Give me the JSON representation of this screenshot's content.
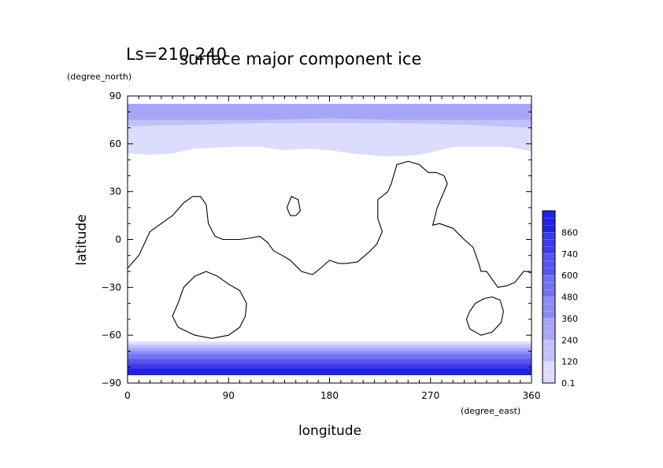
{
  "chart_data": {
    "type": "heatmap",
    "title": "surface major component ice",
    "subtitle": "Ls=210-240",
    "xlabel": "longitude",
    "ylabel": "latitude",
    "x_units": "(degree_east)",
    "y_units": "(degree_north)",
    "xlim": [
      0,
      360
    ],
    "ylim": [
      -90,
      90
    ],
    "x_ticks": [
      "0",
      "90",
      "180",
      "270",
      "360"
    ],
    "y_ticks": [
      "90",
      "60",
      "30",
      "0",
      "−30",
      "−60",
      "−90"
    ],
    "colorbar": {
      "labels": [
        "0.1",
        "120",
        "240",
        "360",
        "480",
        "600",
        "740",
        "860"
      ],
      "light_color": "#dcdcff",
      "dark_color": "#2020e8"
    },
    "north_cap": {
      "lat_top": 85,
      "levels": [
        {
          "value": 0.1,
          "lower_boundary": [
            [
              0,
              54
            ],
            [
              20,
              53
            ],
            [
              40,
              54
            ],
            [
              60,
              57
            ],
            [
              90,
              58
            ],
            [
              120,
              58
            ],
            [
              140,
              56
            ],
            [
              160,
              57
            ],
            [
              180,
              56
            ],
            [
              200,
              54
            ],
            [
              230,
              52
            ],
            [
              260,
              53
            ],
            [
              290,
              58
            ],
            [
              320,
              58
            ],
            [
              340,
              58
            ],
            [
              355,
              56
            ],
            [
              360,
              55
            ]
          ]
        },
        {
          "value": 120,
          "lower_boundary": [
            [
              0,
              71
            ],
            [
              60,
              72
            ],
            [
              120,
              73
            ],
            [
              180,
              73
            ],
            [
              240,
              73
            ],
            [
              300,
              72
            ],
            [
              360,
              70
            ]
          ]
        },
        {
          "value": 240,
          "lower_boundary": [
            [
              0,
              75
            ],
            [
              60,
              75
            ],
            [
              120,
              75
            ],
            [
              180,
              76
            ],
            [
              240,
              75
            ],
            [
              300,
              75
            ],
            [
              360,
              75
            ]
          ]
        }
      ]
    },
    "south_cap": {
      "lat_bottom": -85,
      "levels": [
        {
          "value": 0.1,
          "upper_boundary": -64
        },
        {
          "value": 120,
          "upper_boundary": -66
        },
        {
          "value": 240,
          "upper_boundary": -68
        },
        {
          "value": 360,
          "upper_boundary": -70
        },
        {
          "value": 480,
          "upper_boundary": -72
        },
        {
          "value": 600,
          "upper_boundary": -75
        },
        {
          "value": 740,
          "upper_boundary": -78
        },
        {
          "value": 860,
          "upper_boundary": -81
        }
      ]
    },
    "topography_contours": [
      {
        "name": "main",
        "closed": false,
        "points": [
          [
            0,
            -18
          ],
          [
            10,
            -10
          ],
          [
            20,
            5
          ],
          [
            30,
            10
          ],
          [
            40,
            15
          ],
          [
            50,
            23
          ],
          [
            58,
            27
          ],
          [
            65,
            27
          ],
          [
            70,
            22
          ],
          [
            72,
            10
          ],
          [
            78,
            2
          ],
          [
            85,
            0
          ],
          [
            100,
            0
          ],
          [
            110,
            1
          ],
          [
            118,
            2
          ],
          [
            125,
            -2
          ],
          [
            130,
            -7
          ],
          [
            138,
            -10
          ],
          [
            145,
            -13
          ],
          [
            155,
            -20
          ],
          [
            165,
            -22
          ],
          [
            172,
            -18
          ],
          [
            180,
            -13
          ],
          [
            188,
            -15
          ],
          [
            195,
            -15
          ],
          [
            205,
            -14
          ],
          [
            215,
            -8
          ],
          [
            222,
            -3
          ],
          [
            227,
            5
          ],
          [
            223,
            13
          ],
          [
            223,
            25
          ],
          [
            232,
            30
          ],
          [
            235,
            35
          ],
          [
            240,
            47
          ],
          [
            250,
            49
          ],
          [
            260,
            47
          ],
          [
            268,
            42
          ],
          [
            275,
            42
          ],
          [
            282,
            40
          ],
          [
            285,
            35
          ],
          [
            276,
            20
          ],
          [
            272,
            9
          ],
          [
            278,
            10
          ],
          [
            290,
            7
          ],
          [
            300,
            0
          ],
          [
            308,
            -5
          ],
          [
            313,
            -15
          ],
          [
            315,
            -20
          ],
          [
            320,
            -20
          ],
          [
            325,
            -25
          ],
          [
            330,
            -30
          ],
          [
            338,
            -29
          ],
          [
            345,
            -27
          ],
          [
            353,
            -20
          ],
          [
            356,
            -20
          ],
          [
            360,
            -21
          ]
        ]
      },
      {
        "name": "hellas",
        "closed": true,
        "points": [
          [
            45,
            -40
          ],
          [
            50,
            -30
          ],
          [
            60,
            -23
          ],
          [
            70,
            -20
          ],
          [
            80,
            -23
          ],
          [
            90,
            -28
          ],
          [
            100,
            -32
          ],
          [
            106,
            -40
          ],
          [
            105,
            -48
          ],
          [
            100,
            -55
          ],
          [
            90,
            -60
          ],
          [
            75,
            -62
          ],
          [
            60,
            -60
          ],
          [
            45,
            -55
          ],
          [
            40,
            -48
          ]
        ]
      },
      {
        "name": "argyre",
        "closed": true,
        "points": [
          [
            305,
            -45
          ],
          [
            310,
            -40
          ],
          [
            318,
            -37
          ],
          [
            325,
            -36
          ],
          [
            332,
            -38
          ],
          [
            335,
            -45
          ],
          [
            333,
            -52
          ],
          [
            325,
            -58
          ],
          [
            315,
            -60
          ],
          [
            305,
            -56
          ],
          [
            302,
            -50
          ]
        ]
      },
      {
        "name": "elysium",
        "closed": true,
        "points": [
          [
            142,
            20
          ],
          [
            146,
            27
          ],
          [
            152,
            25
          ],
          [
            154,
            18
          ],
          [
            150,
            15
          ],
          [
            145,
            15
          ]
        ]
      }
    ]
  }
}
